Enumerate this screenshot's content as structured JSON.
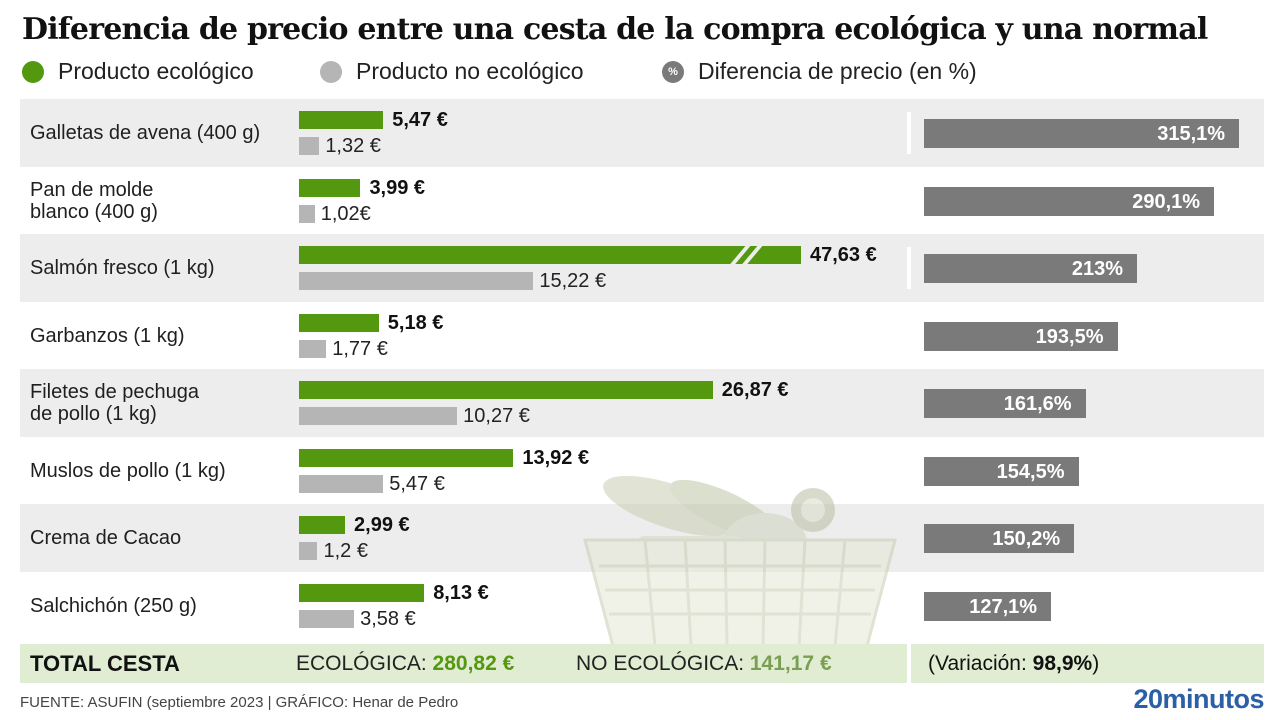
{
  "title": "Diferencia de precio entre una cesta de la compra ecológica y una normal",
  "legend": {
    "eco_label": "Producto ecológico",
    "noeco_label": "Producto no ecológico",
    "pct_label": "Diferencia de precio (en %)",
    "pct_symbol": "%"
  },
  "colors": {
    "eco": "#54980f",
    "noeco": "#b5b5b5",
    "pct": "#7a7a7a",
    "total_bg": "#e1edd2",
    "row_bg": "#ededed"
  },
  "icons": [
    "legend-dot",
    "percent-badge-icon",
    "shopping-basket-image",
    "axis-break-icon"
  ],
  "chart_data": {
    "type": "bar",
    "title": "Diferencia de precio entre una cesta de la compra ecológica y una normal",
    "xlabel": "",
    "ylabel": "",
    "grid": false,
    "legend_placement": "top",
    "axis_break_on": "Salmón fresco (1 kg)",
    "categories": [
      "Galletas de avena (400 g)",
      "Pan de molde blanco (400 g)",
      "Salmón fresco (1 kg)",
      "Garbanzos (1 kg)",
      "Filetes de pechuga de pollo (1 kg)",
      "Muslos de pollo (1 kg)",
      "Crema de Cacao",
      "Salchichón (250 g)"
    ],
    "category_lines": [
      [
        "Galletas de avena (400 g)"
      ],
      [
        "Pan de molde",
        "blanco (400 g)"
      ],
      [
        "Salmón fresco (1 kg)"
      ],
      [
        "Garbanzos (1 kg)"
      ],
      [
        "Filetes de pechuga",
        "de pollo (1 kg)"
      ],
      [
        "Muslos de pollo (1 kg)"
      ],
      [
        "Crema de Cacao"
      ],
      [
        "Salchichón (250 g)"
      ]
    ],
    "series": [
      {
        "name": "Producto ecológico",
        "values": [
          5.47,
          3.99,
          47.63,
          5.18,
          26.87,
          13.92,
          2.99,
          8.13
        ],
        "labels": [
          "5,47 €",
          "3,99 €",
          "47,63 €",
          "5,18 €",
          "26,87 €",
          "13,92 €",
          "2,99 €",
          "8,13 €"
        ]
      },
      {
        "name": "Producto no ecológico",
        "values": [
          1.32,
          1.02,
          15.22,
          1.77,
          10.27,
          5.47,
          1.2,
          3.58
        ],
        "labels": [
          "1,32 €",
          "1,02€",
          "15,22 €",
          "1,77 €",
          "10,27 €",
          "5,47 €",
          "1,2 €",
          "3,58 €"
        ]
      },
      {
        "name": "Diferencia de precio (en %)",
        "values": [
          315.1,
          290.1,
          213,
          193.5,
          161.6,
          154.5,
          150.2,
          127.1
        ],
        "labels": [
          "315,1%",
          "290,1%",
          "213%",
          "193,5%",
          "161,6%",
          "154,5%",
          "150,2%",
          "127,1%"
        ]
      }
    ]
  },
  "total": {
    "label": "TOTAL CESTA",
    "eco_prefix": "ECOLÓGICA:",
    "eco_value": "280,82 €",
    "noeco_prefix": "NO ECOLÓGICA:",
    "noeco_value": "141,17 €",
    "var_prefix": "(Variación:",
    "var_value": "98,9%",
    "var_suffix": ")"
  },
  "footer": {
    "source": "FUENTE: ASUFIN (septiembre 2023  |  GRÁFICO: Henar de Pedro",
    "logo": "20minutos"
  }
}
